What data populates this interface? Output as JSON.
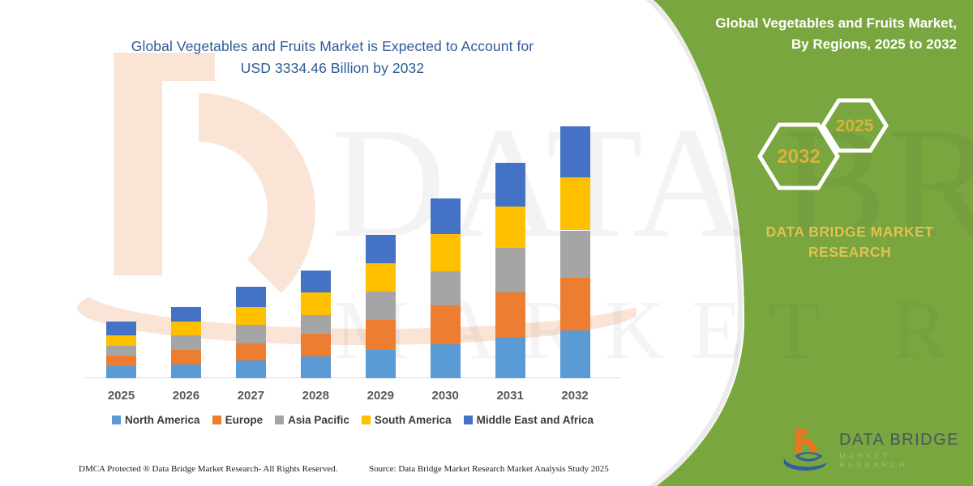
{
  "header": {
    "title_line1": "Global Vegetables and Fruits Market is Expected to Account for",
    "title_line2": "USD 3334.46 Billion by 2032"
  },
  "side_panel": {
    "title_line1": "Global Vegetables and Fruits Market,",
    "title_line2": "By Regions, 2025 to 2032",
    "hex_primary": "2032",
    "hex_secondary": "2025",
    "brand_line1": "DATA BRIDGE MARKET",
    "brand_line2": "RESEARCH",
    "green": "#79A63F",
    "gold": "#D9B23C"
  },
  "chart_data": {
    "type": "bar",
    "stacked": true,
    "title": "Global Vegetables and Fruits Market is Expected to Account for USD 3334.46 Billion by 2032",
    "unit": "USD Billion (values estimated from bar heights; 2032 total anchored to 3334.46)",
    "categories": [
      "2025",
      "2026",
      "2027",
      "2028",
      "2029",
      "2030",
      "2031",
      "2032"
    ],
    "series": [
      {
        "name": "North America",
        "color": "#5B9BD5",
        "values": [
          161,
          179,
          233,
          293,
          376,
          454,
          544,
          633
        ]
      },
      {
        "name": "Europe",
        "color": "#ED7D31",
        "values": [
          143,
          196,
          233,
          297,
          400,
          512,
          590,
          698
        ]
      },
      {
        "name": "Asia Pacific",
        "color": "#A5A5A5",
        "values": [
          126,
          196,
          239,
          247,
          376,
          447,
          590,
          626
        ]
      },
      {
        "name": "South America",
        "color": "#FFC000",
        "values": [
          143,
          179,
          244,
          304,
          376,
          494,
          544,
          705
        ]
      },
      {
        "name": "Middle East and Africa",
        "color": "#4472C4",
        "values": [
          179,
          196,
          258,
          290,
          368,
          472,
          583,
          672.46
        ]
      }
    ],
    "totals": [
      752,
      946,
      1207,
      1431,
      1896,
      2379,
      2851,
      3334.46
    ],
    "xlabel": "",
    "ylabel": "",
    "y_axis_visible": false,
    "gridlines": false,
    "legend_position": "bottom"
  },
  "footer": {
    "left": "DMCA Protected ® Data Bridge Market Research-  All Rights Reserved.",
    "source": "Source: Data Bridge Market Research  Market Analysis Study 2025"
  },
  "footer_logo": {
    "line1": "DATA BRIDGE",
    "line2": "MARKET RESEARCH"
  },
  "watermark": {
    "line1": "DATA BRIDGE",
    "line2": "MARKET RESEARCH"
  }
}
